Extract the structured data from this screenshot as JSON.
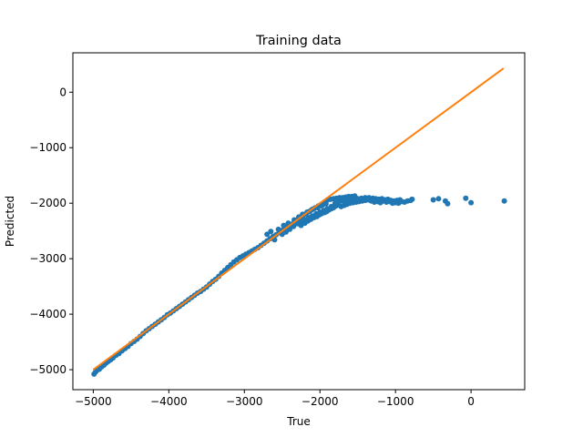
{
  "chart_data": {
    "type": "scatter",
    "title": "Training data",
    "xlabel": "True",
    "ylabel": "Predicted",
    "xlim": [
      -5270,
      710
    ],
    "ylim": [
      -5360,
      710
    ],
    "x_ticks": [
      -5000,
      -4000,
      -3000,
      -2000,
      -1000,
      0
    ],
    "x_tick_labels": [
      "−5000",
      "−4000",
      "−3000",
      "−2000",
      "−1000",
      "0"
    ],
    "y_ticks": [
      -5000,
      -4000,
      -3000,
      -2000,
      -1000,
      0
    ],
    "y_tick_labels": [
      "−5000",
      "−4000",
      "−3000",
      "−2000",
      "−1000",
      "0"
    ],
    "grid": false,
    "legend": "none",
    "colors": {
      "points": "#1f77b4",
      "line": "#ff7f0e"
    },
    "line": {
      "x": [
        -5000,
        430
      ],
      "y": [
        -5000,
        430
      ]
    },
    "points": [
      [
        -4990,
        -5080
      ],
      [
        -4970,
        -5040
      ],
      [
        -4950,
        -5010
      ],
      [
        -4920,
        -4990
      ],
      [
        -4890,
        -4950
      ],
      [
        -4860,
        -4920
      ],
      [
        -4830,
        -4880
      ],
      [
        -4800,
        -4850
      ],
      [
        -4770,
        -4820
      ],
      [
        -4740,
        -4790
      ],
      [
        -4700,
        -4740
      ],
      [
        -4660,
        -4710
      ],
      [
        -4620,
        -4660
      ],
      [
        -4580,
        -4620
      ],
      [
        -4540,
        -4580
      ],
      [
        -4500,
        -4530
      ],
      [
        -4460,
        -4490
      ],
      [
        -4420,
        -4450
      ],
      [
        -4380,
        -4400
      ],
      [
        -4340,
        -4350
      ],
      [
        -4300,
        -4300
      ],
      [
        -4260,
        -4260
      ],
      [
        -4220,
        -4220
      ],
      [
        -4180,
        -4180
      ],
      [
        -4140,
        -4140
      ],
      [
        -4100,
        -4100
      ],
      [
        -4060,
        -4060
      ],
      [
        -4020,
        -4010
      ],
      [
        -3980,
        -3980
      ],
      [
        -3940,
        -3940
      ],
      [
        -3900,
        -3900
      ],
      [
        -3860,
        -3860
      ],
      [
        -3820,
        -3820
      ],
      [
        -3780,
        -3780
      ],
      [
        -3740,
        -3740
      ],
      [
        -3700,
        -3700
      ],
      [
        -3660,
        -3660
      ],
      [
        -3620,
        -3620
      ],
      [
        -3580,
        -3590
      ],
      [
        -3540,
        -3550
      ],
      [
        -3500,
        -3510
      ],
      [
        -3460,
        -3460
      ],
      [
        -3420,
        -3410
      ],
      [
        -3380,
        -3370
      ],
      [
        -3340,
        -3320
      ],
      [
        -3300,
        -3260
      ],
      [
        -3260,
        -3210
      ],
      [
        -3220,
        -3160
      ],
      [
        -3180,
        -3110
      ],
      [
        -3140,
        -3060
      ],
      [
        -3100,
        -3020
      ],
      [
        -3060,
        -2980
      ],
      [
        -3020,
        -2950
      ],
      [
        -2980,
        -2920
      ],
      [
        -2940,
        -2890
      ],
      [
        -2900,
        -2860
      ],
      [
        -2860,
        -2830
      ],
      [
        -2820,
        -2800
      ],
      [
        -2780,
        -2760
      ],
      [
        -2740,
        -2720
      ],
      [
        -2700,
        -2680
      ],
      [
        -2660,
        -2640
      ],
      [
        -2620,
        -2600
      ],
      [
        -2580,
        -2570
      ],
      [
        -2540,
        -2530
      ],
      [
        -2500,
        -2490
      ],
      [
        -2460,
        -2440
      ],
      [
        -2420,
        -2410
      ],
      [
        -2380,
        -2380
      ],
      [
        -2340,
        -2340
      ],
      [
        -2300,
        -2300
      ],
      [
        -2260,
        -2260
      ],
      [
        -2220,
        -2220
      ],
      [
        -2180,
        -2190
      ],
      [
        -2140,
        -2150
      ],
      [
        -2100,
        -2110
      ],
      [
        -2060,
        -2080
      ],
      [
        -2020,
        -2050
      ],
      [
        -1980,
        -2020
      ],
      [
        -1940,
        -1980
      ],
      [
        -2600,
        -2660
      ],
      [
        -2500,
        -2560
      ],
      [
        -2450,
        -2520
      ],
      [
        -2400,
        -2470
      ],
      [
        -2350,
        -2420
      ],
      [
        -2300,
        -2370
      ],
      [
        -2250,
        -2340
      ],
      [
        -2200,
        -2300
      ],
      [
        -2150,
        -2260
      ],
      [
        -2100,
        -2230
      ],
      [
        -2050,
        -2190
      ],
      [
        -2000,
        -2160
      ],
      [
        -1950,
        -2130
      ],
      [
        -1900,
        -2100
      ],
      [
        -1850,
        -2060
      ],
      [
        -2700,
        -2560
      ],
      [
        -2650,
        -2510
      ],
      [
        -2550,
        -2470
      ],
      [
        -2480,
        -2400
      ],
      [
        -2420,
        -2360
      ],
      [
        -2340,
        -2300
      ],
      [
        -2280,
        -2250
      ],
      [
        -2230,
        -2200
      ],
      [
        -2170,
        -2160
      ],
      [
        -2120,
        -2130
      ],
      [
        -2080,
        -2100
      ],
      [
        -2030,
        -2080
      ],
      [
        -1990,
        -2050
      ],
      [
        -1960,
        -2030
      ],
      [
        -1920,
        -2010
      ],
      [
        -2250,
        -2400
      ],
      [
        -2200,
        -2360
      ],
      [
        -2160,
        -2320
      ],
      [
        -2120,
        -2290
      ],
      [
        -2080,
        -2260
      ],
      [
        -2040,
        -2240
      ],
      [
        -2010,
        -2210
      ],
      [
        -1980,
        -2190
      ],
      [
        -1940,
        -2170
      ],
      [
        -1910,
        -2150
      ],
      [
        -1880,
        -2120
      ],
      [
        -1850,
        -2100
      ],
      [
        -1820,
        -2080
      ],
      [
        -1790,
        -2050
      ],
      [
        -1760,
        -2030
      ],
      [
        -1900,
        -1940
      ],
      [
        -1860,
        -1930
      ],
      [
        -1820,
        -1920
      ],
      [
        -1780,
        -1910
      ],
      [
        -1740,
        -1900
      ],
      [
        -1700,
        -1900
      ],
      [
        -1660,
        -1890
      ],
      [
        -1620,
        -1880
      ],
      [
        -1580,
        -1880
      ],
      [
        -1540,
        -1870
      ],
      [
        -1800,
        -2000
      ],
      [
        -1750,
        -1980
      ],
      [
        -1700,
        -1960
      ],
      [
        -1650,
        -1950
      ],
      [
        -1600,
        -1940
      ],
      [
        -1550,
        -1930
      ],
      [
        -1500,
        -1920
      ],
      [
        -1450,
        -1910
      ],
      [
        -1400,
        -1900
      ],
      [
        -1350,
        -1900
      ],
      [
        -1720,
        -2060
      ],
      [
        -1680,
        -2040
      ],
      [
        -1640,
        -2020
      ],
      [
        -1600,
        -2000
      ],
      [
        -1560,
        -1990
      ],
      [
        -1520,
        -1980
      ],
      [
        -1480,
        -1970
      ],
      [
        -1440,
        -1960
      ],
      [
        -1400,
        -1950
      ],
      [
        -1360,
        -1940
      ],
      [
        -1300,
        -1910
      ],
      [
        -1260,
        -1920
      ],
      [
        -1220,
        -1930
      ],
      [
        -1180,
        -1920
      ],
      [
        -1140,
        -1940
      ],
      [
        -1100,
        -1930
      ],
      [
        -1060,
        -1950
      ],
      [
        -1020,
        -1960
      ],
      [
        -980,
        -1950
      ],
      [
        -940,
        -1940
      ],
      [
        -1320,
        -1960
      ],
      [
        -1280,
        -1980
      ],
      [
        -1240,
        -1970
      ],
      [
        -1200,
        -1990
      ],
      [
        -1160,
        -1960
      ],
      [
        -1120,
        -1980
      ],
      [
        -1080,
        -1970
      ],
      [
        -1040,
        -2000
      ],
      [
        -1000,
        -1990
      ],
      [
        -960,
        -2000
      ],
      [
        -920,
        -1970
      ],
      [
        -880,
        -1980
      ],
      [
        -840,
        -1960
      ],
      [
        -800,
        -1950
      ],
      [
        -780,
        -1930
      ],
      [
        -500,
        -1940
      ],
      [
        -430,
        -1920
      ],
      [
        -340,
        -1960
      ],
      [
        -310,
        -2010
      ],
      [
        -70,
        -1910
      ],
      [
        0,
        -1990
      ],
      [
        440,
        -1960
      ]
    ]
  }
}
